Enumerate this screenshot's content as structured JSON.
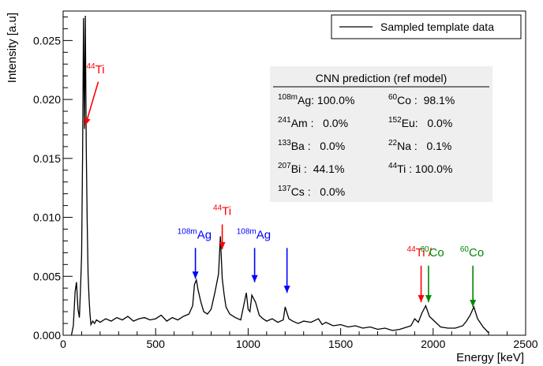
{
  "chart_data": {
    "type": "line",
    "title": "",
    "xlabel": "Energy [keV]",
    "ylabel": "Intensity [a.u]",
    "xlim": [
      0,
      2500
    ],
    "ylim": [
      0,
      0.0275
    ],
    "xticks": [
      0,
      500,
      1000,
      1500,
      2000,
      2500
    ],
    "xtick_labels": [
      "0",
      "500",
      "1000",
      "1500",
      "2000",
      "2500"
    ],
    "yticks": [
      0,
      0.005,
      0.01,
      0.015,
      0.02,
      0.025
    ],
    "ytick_labels": [
      "0.000",
      "0.005",
      "0.010",
      "0.015",
      "0.020",
      "0.025"
    ],
    "grid": false,
    "legend": {
      "position": "top-right",
      "entries": [
        "Sampled template data"
      ]
    },
    "series": [
      {
        "name": "Sampled template data",
        "color": "#000000",
        "x": [
          45,
          55,
          65,
          72,
          80,
          88,
          95,
          100,
          105,
          110,
          115,
          120,
          125,
          130,
          135,
          140,
          145,
          150,
          160,
          170,
          180,
          200,
          230,
          260,
          290,
          320,
          350,
          380,
          410,
          440,
          470,
          500,
          530,
          560,
          590,
          620,
          650,
          680,
          700,
          710,
          720,
          730,
          745,
          760,
          780,
          800,
          820,
          840,
          850,
          860,
          870,
          880,
          900,
          930,
          960,
          990,
          1000,
          1010,
          1020,
          1040,
          1060,
          1080,
          1100,
          1130,
          1160,
          1190,
          1200,
          1210,
          1220,
          1240,
          1270,
          1300,
          1340,
          1380,
          1400,
          1420,
          1460,
          1500,
          1540,
          1580,
          1620,
          1660,
          1700,
          1740,
          1780,
          1820,
          1860,
          1880,
          1900,
          1920,
          1940,
          1960,
          1980,
          2000,
          2040,
          2080,
          2120,
          2160,
          2180,
          2200,
          2220,
          2240,
          2270,
          2300
        ],
        "values": [
          0.0,
          0.0008,
          0.0037,
          0.0045,
          0.0022,
          0.0015,
          0.0045,
          0.0068,
          0.015,
          0.0269,
          0.0175,
          0.0271,
          0.0158,
          0.0095,
          0.0052,
          0.0032,
          0.0018,
          0.0009,
          0.0012,
          0.001,
          0.0013,
          0.0011,
          0.0014,
          0.0012,
          0.0015,
          0.0013,
          0.0016,
          0.0012,
          0.0014,
          0.0015,
          0.0013,
          0.0014,
          0.0017,
          0.0012,
          0.0015,
          0.0013,
          0.0016,
          0.0018,
          0.0025,
          0.0043,
          0.0047,
          0.0038,
          0.0028,
          0.002,
          0.0018,
          0.0022,
          0.0036,
          0.0052,
          0.0084,
          0.0048,
          0.0035,
          0.0024,
          0.0018,
          0.0015,
          0.0013,
          0.0036,
          0.0022,
          0.002,
          0.0034,
          0.0028,
          0.0017,
          0.0014,
          0.0012,
          0.0014,
          0.0011,
          0.0013,
          0.0024,
          0.0019,
          0.0014,
          0.0012,
          0.001,
          0.0012,
          0.0011,
          0.0014,
          0.0009,
          0.0011,
          0.0008,
          0.0009,
          0.0007,
          0.0008,
          0.0006,
          0.0007,
          0.0005,
          0.0006,
          0.0004,
          0.0005,
          0.0007,
          0.0008,
          0.0014,
          0.0011,
          0.0019,
          0.0025,
          0.0016,
          0.0013,
          0.0007,
          0.0006,
          0.0006,
          0.0008,
          0.0012,
          0.0017,
          0.0024,
          0.0014,
          0.0007,
          0.0002
        ]
      }
    ],
    "annotations": [
      {
        "base": "Ti",
        "sup": "44",
        "color": "#ff0000",
        "label_x": 175,
        "label_y": 0.0222,
        "arrow_from": [
          190,
          0.0215
        ],
        "arrow_to": [
          120,
          0.0178
        ]
      },
      {
        "base": "Ag",
        "sup": "108m",
        "color": "#0000ff",
        "label_x": 710,
        "label_y": 0.0082,
        "arrow_from": [
          715,
          0.0074
        ],
        "arrow_to": [
          715,
          0.0048
        ]
      },
      {
        "base": "Ti",
        "sup": "44",
        "color": "#ff0000",
        "label_x": 860,
        "label_y": 0.0102,
        "arrow_from": [
          860,
          0.0094
        ],
        "arrow_to": [
          860,
          0.0073
        ]
      },
      {
        "base": "Ag",
        "sup": "108m",
        "color": "#0000ff",
        "label_x": 1030,
        "label_y": 0.0082,
        "arrow_from": [
          1035,
          0.0074
        ],
        "arrow_to": [
          1035,
          0.0045
        ]
      },
      {
        "base": "",
        "sup": "",
        "color": "#0000ff",
        "label_x": 1210,
        "label_y": 0.0074,
        "arrow_from": [
          1210,
          0.0074
        ],
        "arrow_to": [
          1210,
          0.0036
        ]
      },
      {
        "base": "Ti /",
        "sup": "44",
        "color": "#ff0000",
        "label_x": 1925,
        "label_y": 0.0067,
        "arrow_from": [
          1935,
          0.0059
        ],
        "arrow_to": [
          1935,
          0.0028
        ]
      },
      {
        "base": "Co",
        "sup": "60",
        "color": "#008800",
        "label_x": 1995,
        "label_y": 0.0067,
        "arrow_from": [
          1975,
          0.0059
        ],
        "arrow_to": [
          1975,
          0.0028
        ]
      },
      {
        "base": "Co",
        "sup": "60",
        "color": "#008800",
        "label_x": 2210,
        "label_y": 0.0067,
        "arrow_from": [
          2215,
          0.0059
        ],
        "arrow_to": [
          2215,
          0.0024
        ]
      }
    ]
  },
  "prediction_box": {
    "title": "CNN prediction (ref model)",
    "rows": [
      [
        {
          "sup": "108m",
          "text": "Ag: 100.0%"
        },
        {
          "sup": "60",
          "text": "Co :  98.1%"
        }
      ],
      [
        {
          "sup": "241",
          "text": "Am :   0.0%"
        },
        {
          "sup": "152",
          "text": "Eu:   0.0%"
        }
      ],
      [
        {
          "sup": "133",
          "text": "Ba :   0.0%"
        },
        {
          "sup": "22",
          "text": "Na :   0.1%"
        }
      ],
      [
        {
          "sup": "207",
          "text": "Bi :  44.1%"
        },
        {
          "sup": "44",
          "text": "Ti : 100.0%"
        }
      ],
      [
        {
          "sup": "137",
          "text": "Cs :   0.0%"
        },
        null
      ]
    ]
  }
}
